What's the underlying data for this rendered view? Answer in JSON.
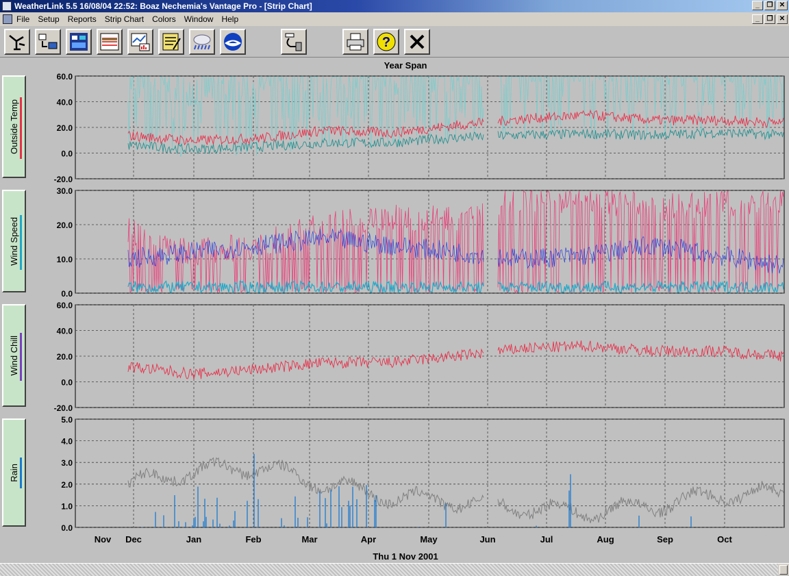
{
  "window": {
    "title": "WeatherLink 5.5  16/08/04  22:52: Boaz Nechemia's Vantage Pro - [Strip Chart]"
  },
  "menu": [
    "File",
    "Setup",
    "Reports",
    "Strip Chart",
    "Colors",
    "Window",
    "Help"
  ],
  "toolbar": {
    "buttons": [
      {
        "icon": "wind-vane-icon"
      },
      {
        "icon": "download-icon"
      },
      {
        "icon": "bulletin-icon"
      },
      {
        "icon": "summary-icon"
      },
      {
        "icon": "graph-icon"
      },
      {
        "icon": "notes-icon"
      },
      {
        "icon": "weather-cloud-icon"
      },
      {
        "icon": "noaa-icon"
      },
      {
        "icon": "connect-icon"
      },
      {
        "icon": "print-icon"
      },
      {
        "icon": "help-icon"
      },
      {
        "icon": "close-icon"
      }
    ]
  },
  "chart_title": "Year Span",
  "date_label": "Thu 1 Nov 2001",
  "months": [
    "Nov",
    "Dec",
    "Jan",
    "Feb",
    "Mar",
    "Apr",
    "May",
    "Jun",
    "Jul",
    "Aug",
    "Sep",
    "Oct"
  ],
  "colors": {
    "red": "#e8304a",
    "teal": "#2a8f8f",
    "lightteal": "#7ccccc",
    "pink": "#e8407a",
    "blue": "#2a40d8",
    "cyan": "#20a8c8",
    "purple": "#7a40c0",
    "gray": "#808080",
    "rainblue": "#1a7ad0"
  },
  "chart_data": [
    {
      "type": "line",
      "name": "Outside Temp",
      "ylabel": "Outside Temp",
      "ylim": [
        -20,
        60
      ],
      "yticks": [
        "60.0",
        "40.0",
        "20.0",
        "0.0",
        "-20.0"
      ],
      "monthly_avg": {
        "months": [
          "Dec",
          "Jan",
          "Feb",
          "Mar",
          "Apr",
          "May",
          "Jun",
          "Jul",
          "Aug",
          "Sep",
          "Oct"
        ],
        "temp_high": [
          12,
          8,
          10,
          16,
          14,
          20,
          25,
          28,
          24,
          24,
          22
        ],
        "temp_low": [
          6,
          3,
          5,
          8,
          8,
          12,
          14,
          15,
          14,
          16,
          14
        ]
      }
    },
    {
      "type": "line",
      "name": "Wind Speed",
      "ylabel": "Wind Speed",
      "ylim": [
        0,
        30
      ],
      "yticks": [
        "30.0",
        "20.0",
        "10.0",
        "0.0"
      ],
      "monthly_avg": {
        "months": [
          "Dec",
          "Jan",
          "Feb",
          "Mar",
          "Apr",
          "May",
          "Jun",
          "Jul",
          "Aug",
          "Sep",
          "Oct"
        ],
        "hi_speed": [
          18,
          12,
          14,
          20,
          22,
          22,
          28,
          27,
          25,
          26,
          27
        ],
        "avg_speed": [
          10,
          12,
          14,
          16,
          14,
          12,
          10,
          11,
          14,
          11,
          8
        ]
      }
    },
    {
      "type": "line",
      "name": "Wind Chill",
      "ylabel": "Wind Chill",
      "ylim": [
        -20,
        60
      ],
      "yticks": [
        "60.0",
        "40.0",
        "20.0",
        "0.0",
        "-20.0"
      ],
      "monthly_avg": {
        "months": [
          "Dec",
          "Jan",
          "Feb",
          "Mar",
          "Apr",
          "May",
          "Jun",
          "Jul",
          "Aug",
          "Sep",
          "Oct"
        ],
        "chill": [
          12,
          6,
          10,
          15,
          15,
          20,
          26,
          28,
          24,
          24,
          20
        ]
      }
    },
    {
      "type": "line",
      "name": "Rain",
      "ylabel": "Rain",
      "ylim": [
        0,
        5
      ],
      "yticks": [
        "5.0",
        "4.0",
        "3.0",
        "2.0",
        "1.0",
        "0.0"
      ],
      "monthly_avg": {
        "months": [
          "Dec",
          "Jan",
          "Feb",
          "Mar",
          "Apr",
          "May",
          "Jun",
          "Jul",
          "Aug",
          "Sep",
          "Oct"
        ],
        "level": [
          2.0,
          2.6,
          2.8,
          2.0,
          1.4,
          1.2,
          0.9,
          0.7,
          1.0,
          1.5,
          1.6
        ]
      }
    }
  ]
}
